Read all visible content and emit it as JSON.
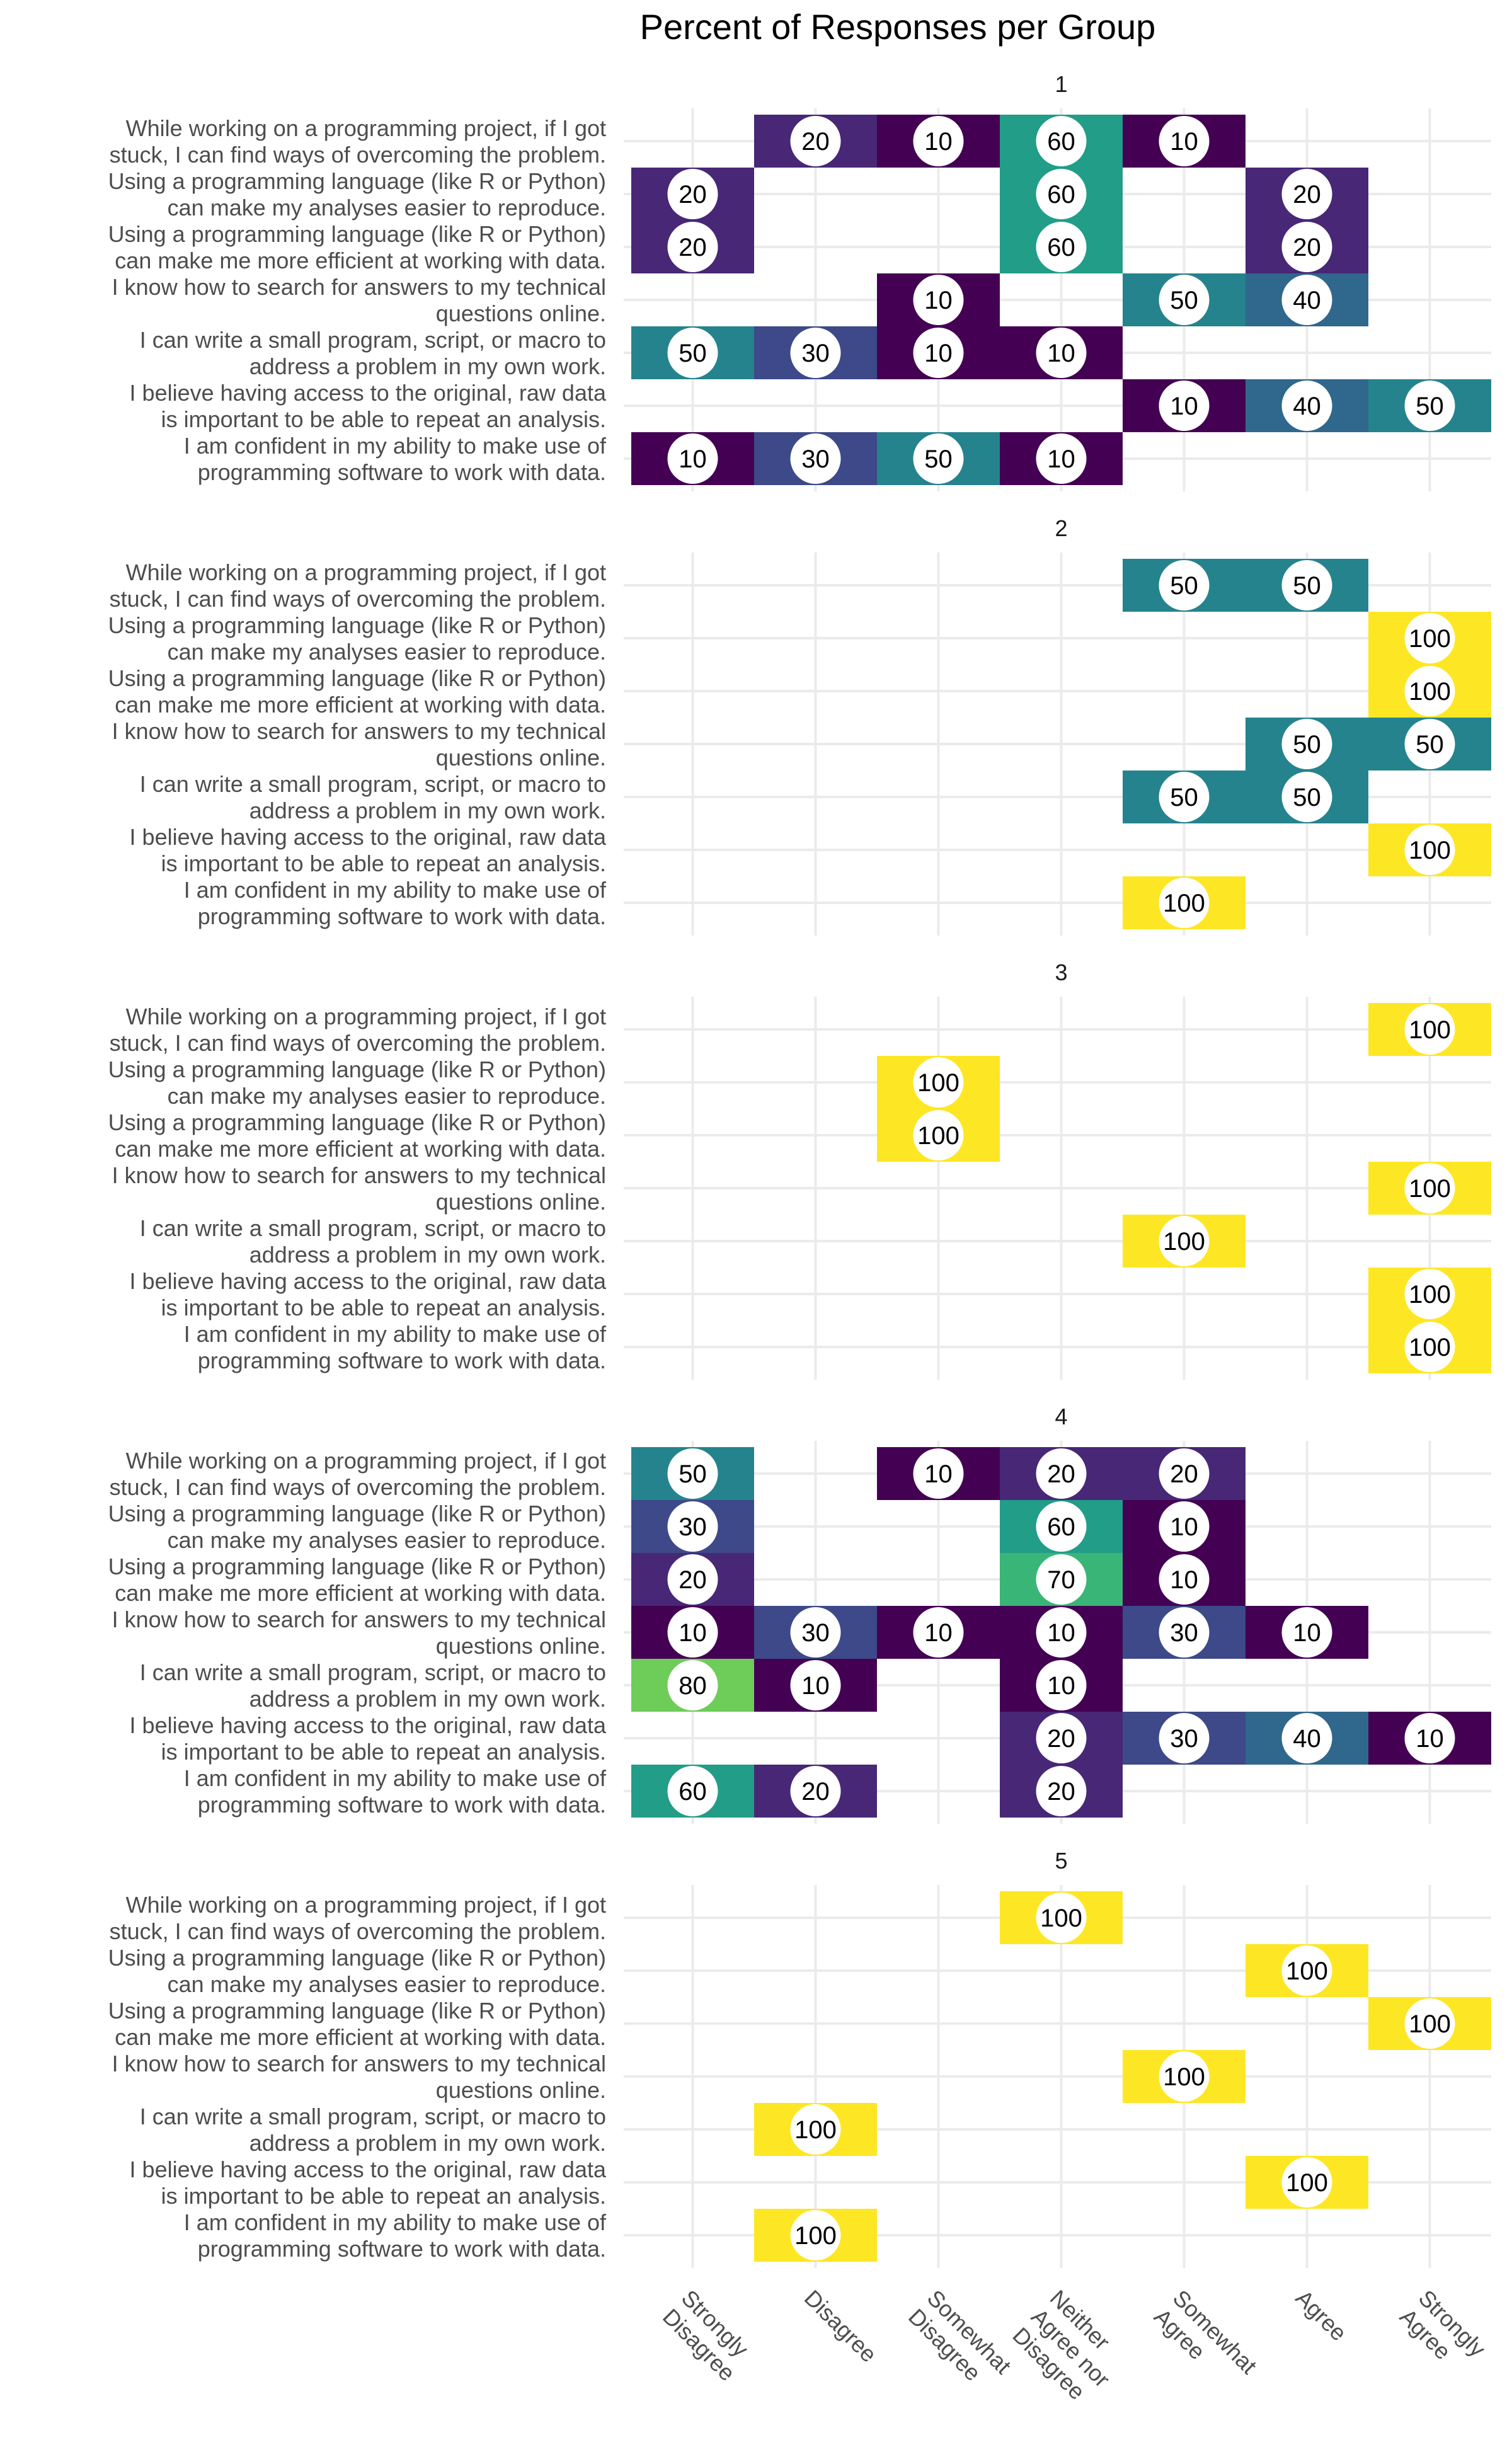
{
  "chart_data": {
    "type": "heatmap",
    "title": "Percent of Responses per Group",
    "columns": [
      "Strongly Disagree",
      "Disagree",
      "Somewhat Disagree",
      "Neither Agree nor Disagree",
      "Somewhat Agree",
      "Agree",
      "Strongly Agree"
    ],
    "rows": [
      "While working on a programming project, if I got stuck, I can find ways of overcoming the problem.",
      "Using a programming language (like R or Python) can make my analyses easier to reproduce.",
      "Using a programming language (like R or Python) can make me more efficient at working with data.",
      "I know how to search for answers to my technical questions online.",
      "I can write a small program, script, or macro to address a problem in my own work.",
      "I believe having access to the original, raw data is important to be able to repeat an analysis.",
      "I am confident in my ability to make use of programming software to work with data."
    ],
    "color_scale": "viridis",
    "value_range": [
      10,
      100
    ],
    "panels": [
      {
        "name": "1",
        "values": [
          [
            null,
            20,
            10,
            60,
            10,
            null,
            null
          ],
          [
            20,
            null,
            null,
            60,
            null,
            20,
            null
          ],
          [
            20,
            null,
            null,
            60,
            null,
            20,
            null
          ],
          [
            null,
            null,
            10,
            null,
            50,
            40,
            null
          ],
          [
            50,
            30,
            10,
            10,
            null,
            null,
            null
          ],
          [
            null,
            null,
            null,
            null,
            10,
            40,
            50
          ],
          [
            10,
            30,
            50,
            10,
            null,
            null,
            null
          ]
        ]
      },
      {
        "name": "2",
        "values": [
          [
            null,
            null,
            null,
            null,
            50,
            50,
            null
          ],
          [
            null,
            null,
            null,
            null,
            null,
            null,
            100
          ],
          [
            null,
            null,
            null,
            null,
            null,
            null,
            100
          ],
          [
            null,
            null,
            null,
            null,
            null,
            50,
            50
          ],
          [
            null,
            null,
            null,
            null,
            50,
            50,
            null
          ],
          [
            null,
            null,
            null,
            null,
            null,
            null,
            100
          ],
          [
            null,
            null,
            null,
            null,
            100,
            null,
            null
          ]
        ]
      },
      {
        "name": "3",
        "values": [
          [
            null,
            null,
            null,
            null,
            null,
            null,
            100
          ],
          [
            null,
            null,
            100,
            null,
            null,
            null,
            null
          ],
          [
            null,
            null,
            100,
            null,
            null,
            null,
            null
          ],
          [
            null,
            null,
            null,
            null,
            null,
            null,
            100
          ],
          [
            null,
            null,
            null,
            null,
            100,
            null,
            null
          ],
          [
            null,
            null,
            null,
            null,
            null,
            null,
            100
          ],
          [
            null,
            null,
            null,
            null,
            null,
            null,
            100
          ]
        ]
      },
      {
        "name": "4",
        "values": [
          [
            50,
            null,
            10,
            20,
            20,
            null,
            null
          ],
          [
            30,
            null,
            null,
            60,
            10,
            null,
            null
          ],
          [
            20,
            null,
            null,
            70,
            10,
            null,
            null
          ],
          [
            10,
            30,
            10,
            10,
            30,
            10,
            null
          ],
          [
            80,
            10,
            null,
            10,
            null,
            null,
            null
          ],
          [
            null,
            null,
            null,
            20,
            30,
            40,
            10
          ],
          [
            60,
            20,
            null,
            20,
            null,
            null,
            null
          ]
        ]
      },
      {
        "name": "5",
        "values": [
          [
            null,
            null,
            null,
            100,
            null,
            null,
            null
          ],
          [
            null,
            null,
            null,
            null,
            null,
            100,
            null
          ],
          [
            null,
            null,
            null,
            null,
            null,
            null,
            100
          ],
          [
            null,
            null,
            null,
            null,
            100,
            null,
            null
          ],
          [
            null,
            100,
            null,
            null,
            null,
            null,
            null
          ],
          [
            null,
            null,
            null,
            null,
            null,
            100,
            null
          ],
          [
            null,
            100,
            null,
            null,
            null,
            null,
            null
          ]
        ]
      }
    ]
  }
}
